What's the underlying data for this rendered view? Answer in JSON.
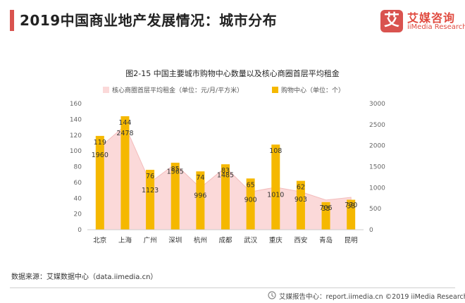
{
  "header": {
    "title": "2019中国商业地产发展情况：城市分布"
  },
  "logo": {
    "mark": "艾",
    "name_cn": "艾媒咨询",
    "name_en": "iiMedia Research"
  },
  "source": "数据来源：艾媒数据中心（data.iimedia.cn）",
  "footer": "艾媒报告中心：report.iimedia.cn  ©2019  iiMedia Research  Inc",
  "colors": {
    "accent": "#d9534f",
    "bar": "#f5b800",
    "area": "#fbd9d9",
    "area_line": "#f3bcbc"
  },
  "chart_data": {
    "type": "bar",
    "title": "图2-15 中国主要城市购物中心数量以及核心商圈首层平均租金",
    "categories": [
      "北京",
      "上海",
      "广州",
      "深圳",
      "杭州",
      "成都",
      "武汉",
      "重庆",
      "西安",
      "青岛",
      "昆明"
    ],
    "series": [
      {
        "name": "核心商圈首层平均租金（单位：元/月/平方米）",
        "type": "area",
        "axis": "right",
        "values": [
          1960,
          2478,
          1123,
          1565,
          996,
          1485,
          900,
          1010,
          903,
          706,
          770
        ]
      },
      {
        "name": "购物中心（单位：个）",
        "type": "bar",
        "axis": "left",
        "values": [
          119,
          144,
          76,
          85,
          74,
          83,
          65,
          108,
          62,
          35,
          38
        ]
      }
    ],
    "y_left": {
      "min": 0,
      "max": 160,
      "ticks": [
        "0",
        "20",
        "40",
        "60",
        "80",
        "100",
        "120",
        "140",
        "160"
      ]
    },
    "y_right": {
      "min": 0,
      "max": 3000,
      "ticks": [
        "0",
        "500",
        "1000",
        "1500",
        "2000",
        "2500",
        "3000"
      ]
    },
    "grid": false,
    "legend": "top-left"
  }
}
